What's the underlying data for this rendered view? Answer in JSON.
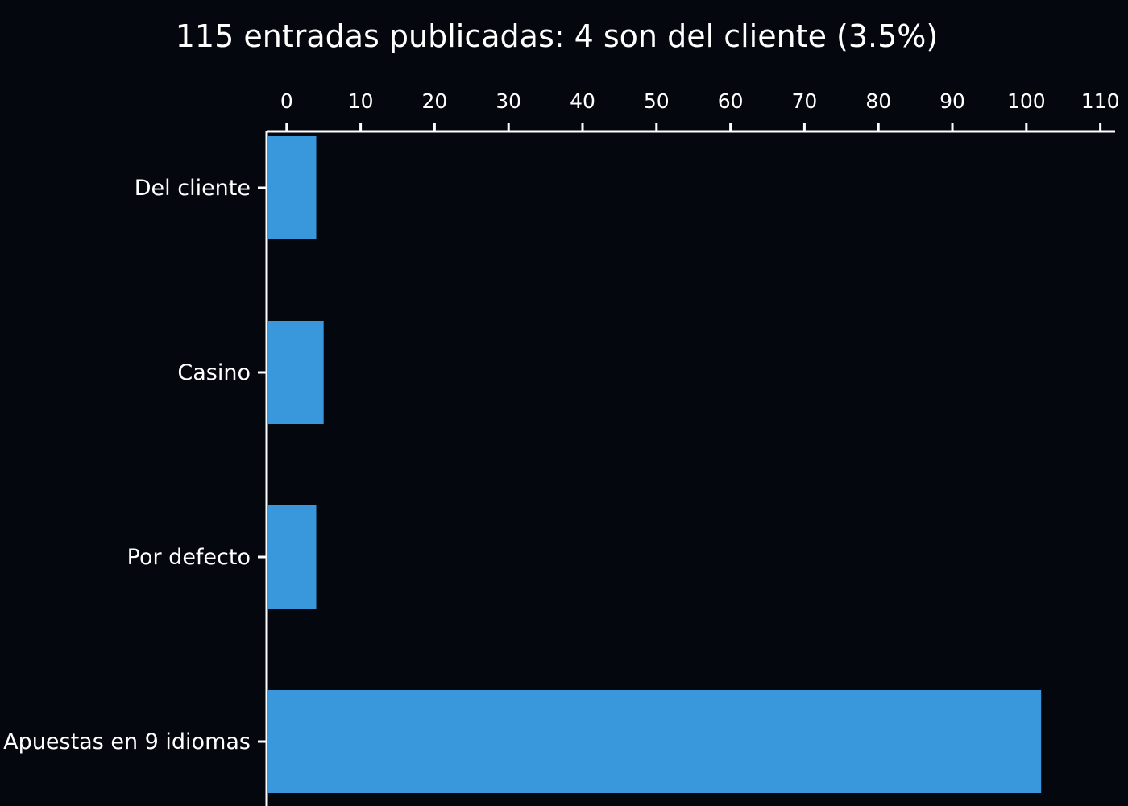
{
  "chart_data": {
    "type": "bar",
    "orientation": "horizontal",
    "title": "115 entradas publicadas: 4 son del cliente (3.5%)",
    "xlabel": "",
    "ylabel": "",
    "x_axis_position": "top",
    "xlim": [
      -2.7,
      112
    ],
    "x_ticks": [
      0,
      10,
      20,
      30,
      40,
      50,
      60,
      70,
      80,
      90,
      100,
      110
    ],
    "grid": false,
    "legend": "none",
    "categories": [
      "Del cliente",
      "Casino",
      "Por defecto",
      "Apuestas en 9 idiomas"
    ],
    "values": [
      4,
      5,
      4,
      102
    ],
    "colors": {
      "background": "#05070e",
      "bar": "#3898db",
      "axis": "#ffffff",
      "text": "#ffffff"
    }
  }
}
